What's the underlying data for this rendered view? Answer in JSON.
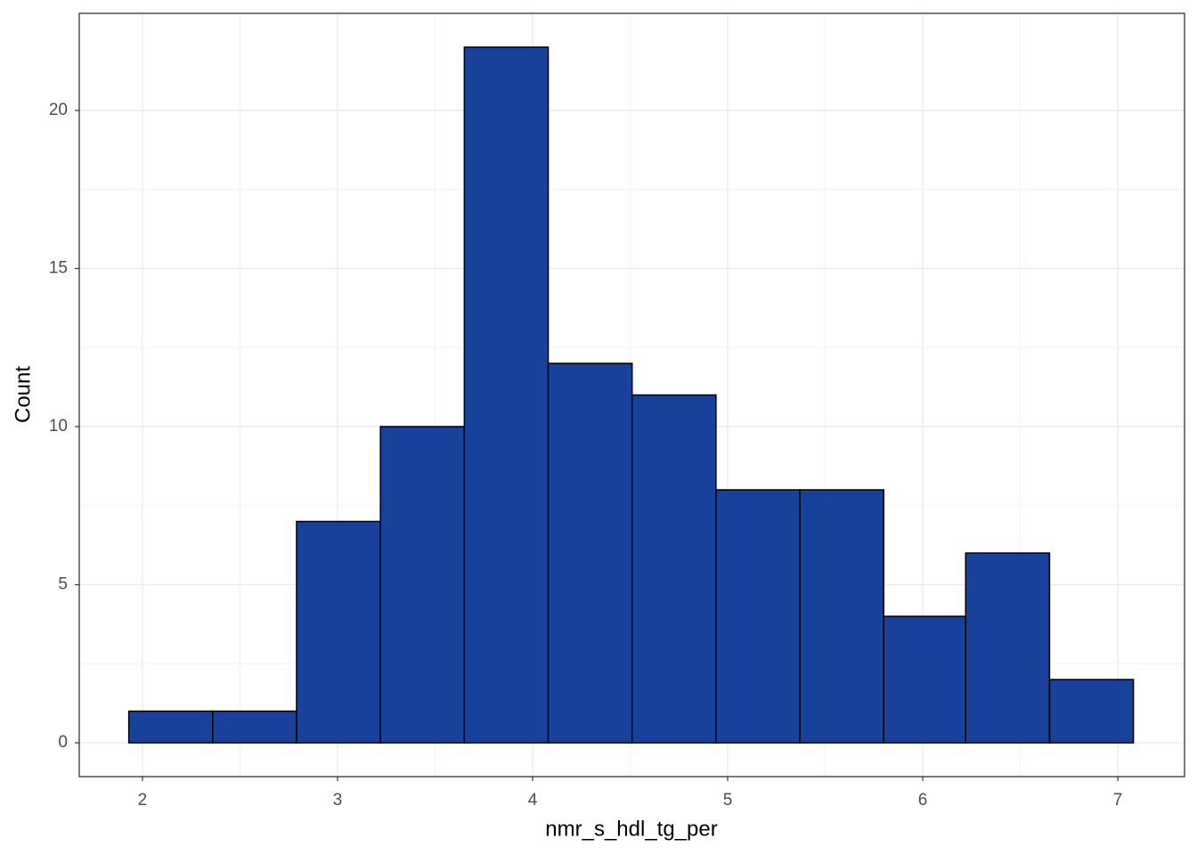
{
  "chart_data": {
    "type": "histogram",
    "x_label": "nmr_s_hdl_tg_per",
    "y_label": "Count",
    "bins": [
      1.93,
      2.36,
      2.79,
      3.22,
      3.65,
      4.08,
      4.51,
      4.94,
      5.37,
      5.8,
      6.22,
      6.65,
      7.08
    ],
    "values": [
      1,
      1,
      7,
      10,
      22,
      12,
      11,
      8,
      8,
      4,
      6,
      2
    ],
    "color": "#17419a",
    "edge_color": "#000000",
    "xlim": [
      1.676,
      7.342
    ],
    "ylim": [
      -1.07,
      23.07
    ],
    "xticks": [
      2,
      3,
      4,
      5,
      6,
      7
    ],
    "yticks": [
      0,
      5,
      10,
      15,
      20
    ],
    "grid": true
  }
}
